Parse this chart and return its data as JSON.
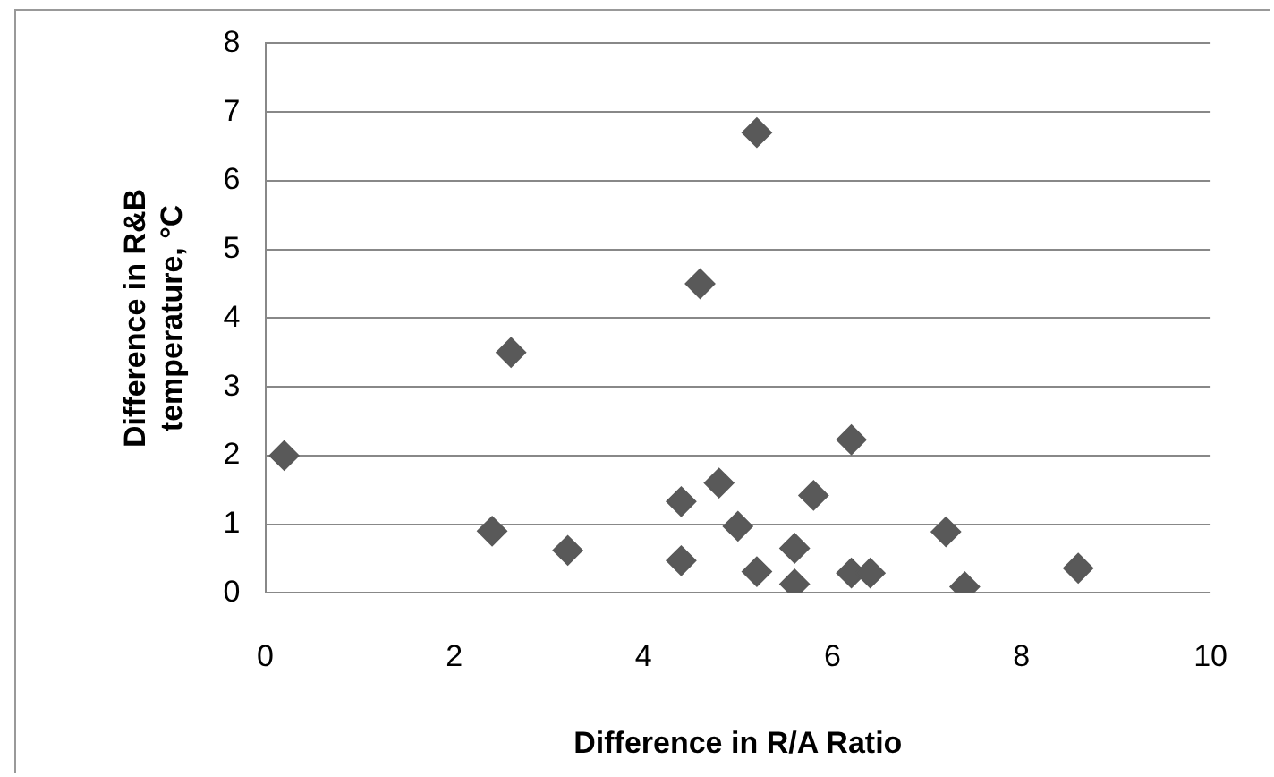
{
  "chart_data": {
    "type": "scatter",
    "xlabel": "Difference in R/A Ratio",
    "ylabel": "Difference in R&B temperature, °C",
    "xlim": [
      0,
      10
    ],
    "xticks": [
      0,
      2,
      4,
      6,
      8,
      10
    ],
    "ylim": [
      0,
      8
    ],
    "yticks": [
      0,
      1,
      2,
      3,
      4,
      5,
      6,
      7,
      8
    ],
    "grid": "y",
    "marker": "diamond",
    "legend": false,
    "series": [
      {
        "color": "#595959",
        "x": [
          0.2,
          2.4,
          2.6,
          3.2,
          4.4,
          4.4,
          4.6,
          4.8,
          5.0,
          5.2,
          5.2,
          5.6,
          5.6,
          5.8,
          6.2,
          6.2,
          6.4,
          7.2,
          7.4,
          8.6
        ],
        "values": [
          2.0,
          0.9,
          3.5,
          0.62,
          1.33,
          0.47,
          4.5,
          1.6,
          0.97,
          6.7,
          0.31,
          0.65,
          0.13,
          1.42,
          2.23,
          0.29,
          0.29,
          0.89,
          0.09,
          0.36
        ]
      }
    ]
  }
}
